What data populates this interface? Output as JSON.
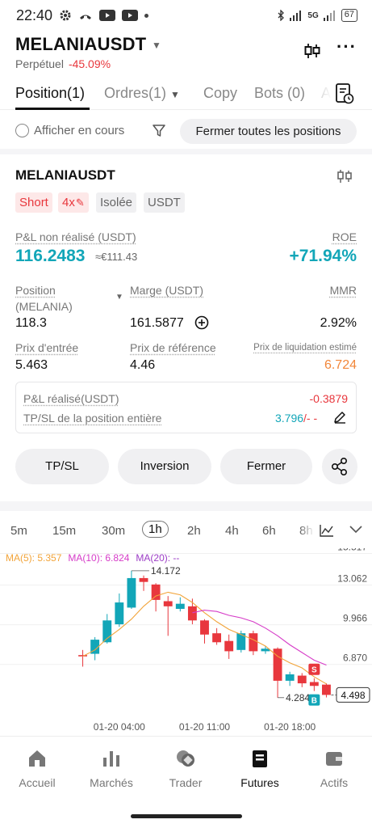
{
  "status": {
    "time": "22:40",
    "network": "5G",
    "battery": "67"
  },
  "header": {
    "pair": "MELANIAUSDT",
    "subtitle": "Perpétuel",
    "change": "-45.09%"
  },
  "tabs": [
    {
      "label": "Position(1)",
      "active": true
    },
    {
      "label": "Ordres(1)",
      "caret": true
    },
    {
      "label": "Copy"
    },
    {
      "label": "Bots (0)"
    },
    {
      "label": "A"
    }
  ],
  "filter": {
    "show_current_label": "Afficher en cours",
    "close_all_label": "Fermer toutes les positions"
  },
  "position": {
    "symbol": "MELANIAUSDT",
    "tags": [
      "Short",
      "4x",
      "Isolée",
      "USDT"
    ],
    "pnl_label": "P&L non réalisé (USDT)",
    "pnl_value": "116.2483",
    "pnl_fiat": "≈€111.43",
    "roe_label": "ROE",
    "roe_value": "+71.94%",
    "position_label": "Position",
    "position_sub": "(MELANIA)",
    "position_value": "118.3",
    "margin_label": "Marge (USDT)",
    "margin_value": "161.5877",
    "mmr_label": "MMR",
    "mmr_value": "2.92%",
    "entry_label": "Prix d'entrée",
    "entry_value": "5.463",
    "ref_label": "Prix de référence",
    "ref_value": "4.46",
    "liq_label": "Prix de liquidation estimé",
    "liq_value": "6.724",
    "realised_label": "P&L réalisé(USDT)",
    "realised_value": "-0.3879",
    "tpsl_label": "TP/SL de la position entière",
    "tpsl_value": "3.796",
    "tpsl_suffix": "/- -"
  },
  "actions": {
    "tpsl": "TP/SL",
    "reverse": "Inversion",
    "close": "Fermer"
  },
  "timeframes": [
    "5m",
    "15m",
    "30m",
    "1h",
    "2h",
    "4h",
    "6h",
    "8h"
  ],
  "active_timeframe": "1h",
  "indicators": {
    "ma5": "MA(5): 5.357",
    "ma10": "MA(10): 6.824",
    "ma20": "MA(20): --"
  },
  "chart_data": {
    "type": "candlestick",
    "y_ticks": [
      "15.517",
      "13.062",
      "9.966",
      "6.870"
    ],
    "ylim": [
      3.2,
      15.8
    ],
    "x_ticks": [
      "01-20 04:00",
      "01-20 11:00",
      "01-20 18:00"
    ],
    "high_label": "14.172",
    "low_label": "4.284",
    "last_price": "4.498",
    "candles": [
      {
        "o": 7.6,
        "c": 7.5,
        "h": 8.0,
        "l": 6.7
      },
      {
        "o": 7.7,
        "c": 8.8,
        "h": 9.0,
        "l": 7.2
      },
      {
        "o": 8.6,
        "c": 10.3,
        "h": 10.8,
        "l": 8.5
      },
      {
        "o": 10.0,
        "c": 11.7,
        "h": 12.4,
        "l": 9.8
      },
      {
        "o": 11.3,
        "c": 13.6,
        "h": 14.172,
        "l": 11.2
      },
      {
        "o": 13.6,
        "c": 13.3,
        "h": 13.8,
        "l": 12.6
      },
      {
        "o": 13.1,
        "c": 11.9,
        "h": 13.2,
        "l": 11.0
      },
      {
        "o": 11.8,
        "c": 11.4,
        "h": 12.2,
        "l": 9.1
      },
      {
        "o": 11.2,
        "c": 11.6,
        "h": 12.1,
        "l": 11.0
      },
      {
        "o": 11.4,
        "c": 10.3,
        "h": 12.0,
        "l": 10.0
      },
      {
        "o": 10.3,
        "c": 9.2,
        "h": 10.4,
        "l": 8.5
      },
      {
        "o": 9.3,
        "c": 8.6,
        "h": 9.7,
        "l": 8.4
      },
      {
        "o": 8.7,
        "c": 7.9,
        "h": 9.2,
        "l": 7.3
      },
      {
        "o": 8.0,
        "c": 9.3,
        "h": 9.5,
        "l": 7.8
      },
      {
        "o": 9.3,
        "c": 7.9,
        "h": 9.5,
        "l": 7.6
      },
      {
        "o": 7.9,
        "c": 8.1,
        "h": 8.3,
        "l": 7.7
      },
      {
        "o": 8.1,
        "c": 5.6,
        "h": 8.2,
        "l": 4.284
      },
      {
        "o": 5.6,
        "c": 6.1,
        "h": 6.3,
        "l": 5.2
      },
      {
        "o": 6.0,
        "c": 5.4,
        "h": 6.2,
        "l": 5.1
      },
      {
        "o": 5.5,
        "c": 5.2,
        "h": 5.8,
        "l": 4.8
      },
      {
        "o": 5.3,
        "c": 4.498,
        "h": 5.4,
        "l": 4.3
      }
    ],
    "ma5": [
      7.5,
      8.0,
      8.9,
      9.6,
      10.4,
      11.4,
      12.2,
      12.5,
      12.3,
      11.7,
      10.9,
      10.2,
      9.6,
      9.2,
      8.8,
      8.3,
      7.5,
      7.0,
      6.6,
      5.9,
      5.357
    ],
    "ma10": [
      null,
      null,
      null,
      null,
      null,
      null,
      null,
      null,
      null,
      10.9,
      11.1,
      11.0,
      10.7,
      10.5,
      10.2,
      9.7,
      9.1,
      8.4,
      7.8,
      7.2,
      6.824
    ],
    "markers": [
      {
        "index": 19,
        "label": "S",
        "color": "#e8373d"
      },
      {
        "index": 19,
        "label": "B",
        "color": "#12a6b8"
      }
    ]
  },
  "nav": [
    {
      "label": "Accueil",
      "icon": "home-icon"
    },
    {
      "label": "Marchés",
      "icon": "chart-bars-icon"
    },
    {
      "label": "Trader",
      "icon": "trade-icon"
    },
    {
      "label": "Futures",
      "icon": "futures-icon",
      "active": true
    },
    {
      "label": "Actifs",
      "icon": "wallet-icon"
    }
  ],
  "colors": {
    "up": "#12a6b8",
    "down": "#e8373d",
    "liq": "#f2873a",
    "ma5": "#f2a43a",
    "ma10": "#d63cc8"
  }
}
